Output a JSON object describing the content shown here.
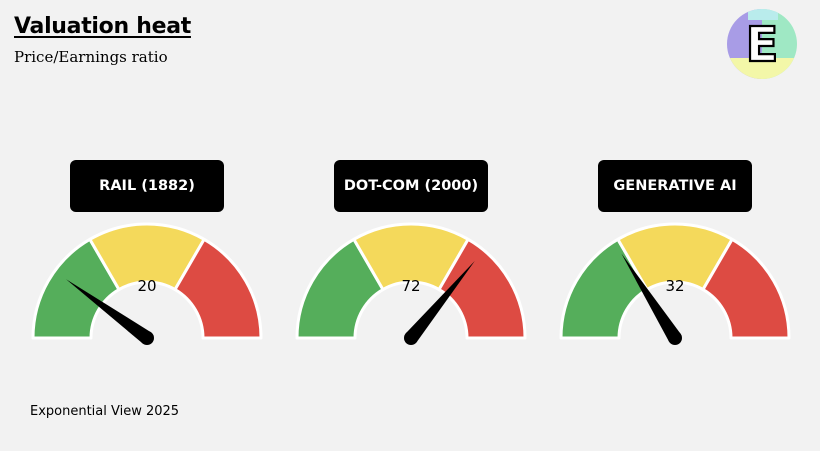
{
  "header": {
    "title": "Valuation heat",
    "subtitle": "Price/Earnings ratio"
  },
  "footer": {
    "source": "Exponential View 2025"
  },
  "logo": {
    "letter": "E",
    "colors": [
      "#a89ce6",
      "#9fe8c4",
      "#f3f7a8",
      "#b9ecec"
    ]
  },
  "colors": {
    "green": "#55ae5b",
    "yellow": "#f4d95b",
    "red": "#dd4b43",
    "needle": "#000000"
  },
  "chart_data": {
    "type": "gauge",
    "title": "Valuation heat",
    "subtitle": "Price/Earnings ratio",
    "range": [
      0,
      100
    ],
    "zones": [
      {
        "color": "green",
        "from": 0,
        "to": 33.3
      },
      {
        "color": "yellow",
        "from": 33.3,
        "to": 66.7
      },
      {
        "color": "red",
        "from": 66.7,
        "to": 100
      }
    ],
    "gauges": [
      {
        "label": "RAIL (1882)",
        "value": 20
      },
      {
        "label": "DOT-COM (2000)",
        "value": 72
      },
      {
        "label": "GENERATIVE AI",
        "value": 32
      }
    ]
  }
}
